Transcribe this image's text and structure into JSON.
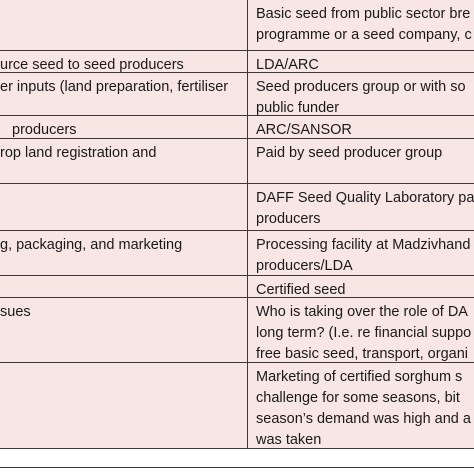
{
  "table": {
    "rows": [
      {
        "left": [],
        "right": [
          "Basic seed from public sector bre",
          "programme or a seed company, c"
        ]
      },
      {
        "left": [
          "urce seed to seed producers"
        ],
        "right": [
          "LDA/ARC"
        ]
      },
      {
        "left": [
          "er inputs (land preparation, fertiliser"
        ],
        "right": [
          "Seed producers group or with so",
          "public funder"
        ]
      },
      {
        "left": [
          "producers"
        ],
        "right": [
          "ARC/SANSOR"
        ]
      },
      {
        "left": [
          "rop land registration and"
        ],
        "right": [
          "Paid by seed producer group"
        ]
      },
      {
        "left": [],
        "right": [
          "DAFF Seed Quality Laboratory pa",
          "producers"
        ]
      },
      {
        "left": [
          "g, packaging, and marketing"
        ],
        "right": [
          "Processing facility at Madzivhand",
          "producers/LDA"
        ]
      },
      {
        "left": [],
        "right": [
          "Certified seed"
        ]
      },
      {
        "left": [
          "sues"
        ],
        "right": [
          "Who is taking over the role of DA",
          "long term? (I.e. re financial suppo",
          "free basic seed, transport, organi"
        ]
      },
      {
        "left": [],
        "right": [
          "Marketing of certified sorghum s",
          "challenge for some seasons, bit",
          "season’s demand was high and a",
          "was taken"
        ]
      }
    ]
  }
}
